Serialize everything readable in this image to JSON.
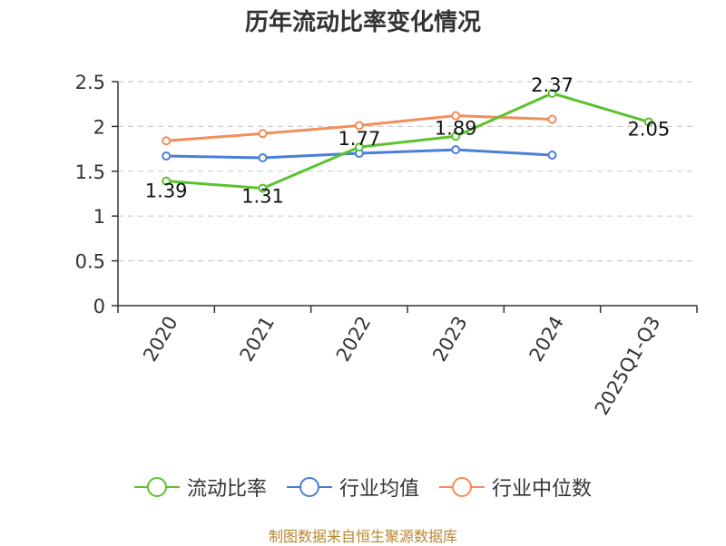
{
  "chart_data": {
    "type": "line",
    "title": "历年流动比率变化情况",
    "categories": [
      "2020",
      "2021",
      "2022",
      "2023",
      "2024",
      "2025Q1-Q3"
    ],
    "ylim": [
      0,
      2.5
    ],
    "yticks": [
      "0",
      "0.5",
      "1",
      "1.5",
      "2",
      "2.5"
    ],
    "grid": true,
    "legend_position": "bottom",
    "series": [
      {
        "name": "流动比率",
        "color": "#5cc22e",
        "values": [
          1.39,
          1.31,
          1.77,
          1.89,
          2.37,
          2.05
        ],
        "labels": [
          "1.39",
          "1.31",
          "1.77",
          "1.89",
          "2.37",
          "2.05"
        ]
      },
      {
        "name": "行业均值",
        "color": "#4a7fd8",
        "values": [
          1.67,
          1.65,
          1.7,
          1.74,
          1.68,
          null
        ]
      },
      {
        "name": "行业中位数",
        "color": "#f58d5a",
        "values": [
          1.84,
          1.92,
          2.01,
          2.12,
          2.08,
          null
        ]
      }
    ],
    "source": "制图数据来自恒生聚源数据库"
  }
}
